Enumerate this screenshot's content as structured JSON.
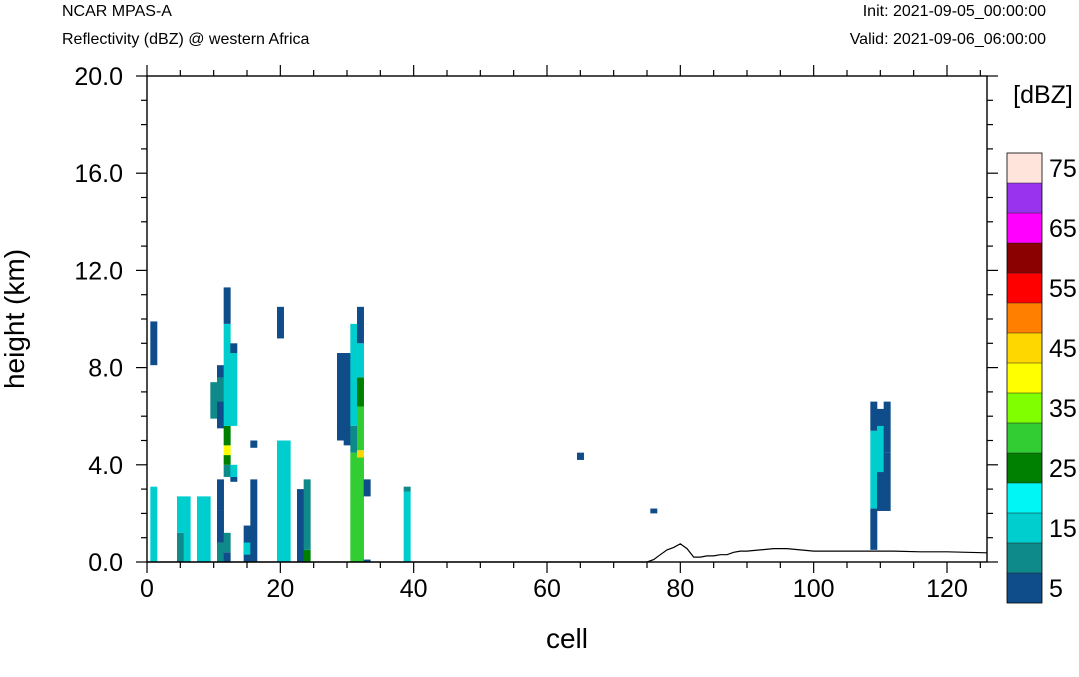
{
  "header": {
    "left_title": "NCAR MPAS-A",
    "left_subtitle": "Reflectivity (dBZ) @ western Africa",
    "right_title": "Init: 2021-09-05_00:00:00",
    "right_subtitle": "Valid: 2021-09-06_06:00:00"
  },
  "chart_data": {
    "type": "heatmap",
    "xlabel": "cell",
    "ylabel": "height (km)",
    "xlim": [
      0,
      126
    ],
    "ylim": [
      0,
      20
    ],
    "x_ticks": [
      0,
      20,
      40,
      60,
      80,
      100,
      120
    ],
    "y_ticks": [
      0,
      4,
      8,
      12,
      16,
      20
    ],
    "x_tick_labels": [
      "0",
      "20",
      "40",
      "60",
      "80",
      "100",
      "120"
    ],
    "y_tick_labels": [
      "0.0",
      "4.0",
      "8.0",
      "12.0",
      "16.0",
      "20.0"
    ],
    "grid": false,
    "legend": {
      "title": "[dBZ]",
      "placement": "right",
      "levels": [
        5,
        10,
        15,
        20,
        25,
        30,
        35,
        40,
        45,
        50,
        55,
        60,
        65,
        70,
        75
      ],
      "labels": [
        "5",
        "15",
        "25",
        "35",
        "45",
        "55",
        "65",
        "75"
      ],
      "colors": [
        "#0f4c8a",
        "#0e8a8a",
        "#00cdcd",
        "#00f5f5",
        "#008000",
        "#32cd32",
        "#7fff00",
        "#ffff00",
        "#ffd700",
        "#ff7f00",
        "#ff0000",
        "#8b0000",
        "#ff00ff",
        "#9933ee",
        "#ffe4dc"
      ]
    },
    "cell_height_km": 0.35,
    "reflectivity_columns": [
      {
        "x": 1,
        "cells": [
          [
            0,
            0.35,
            15
          ],
          [
            0.35,
            3.1,
            15
          ],
          [
            8.1,
            9.9,
            5
          ]
        ]
      },
      {
        "x": 5,
        "cells": [
          [
            0,
            1.2,
            10
          ],
          [
            1.2,
            2.7,
            15
          ]
        ]
      },
      {
        "x": 6,
        "cells": [
          [
            0,
            2.7,
            15
          ]
        ]
      },
      {
        "x": 8,
        "cells": [
          [
            0,
            2.7,
            15
          ]
        ]
      },
      {
        "x": 9,
        "cells": [
          [
            0,
            2.7,
            15
          ]
        ]
      },
      {
        "x": 10,
        "cells": [
          [
            5.9,
            7.4,
            10
          ]
        ]
      },
      {
        "x": 11,
        "cells": [
          [
            0,
            0.8,
            10
          ],
          [
            0.8,
            2.1,
            5
          ],
          [
            2.1,
            3.4,
            5
          ],
          [
            5.5,
            8.1,
            5
          ],
          [
            6.6,
            7.6,
            10
          ]
        ]
      },
      {
        "x": 12,
        "cells": [
          [
            0,
            0.4,
            5
          ],
          [
            0.4,
            1.2,
            10
          ],
          [
            3.5,
            4.0,
            10
          ],
          [
            4.0,
            4.4,
            25
          ],
          [
            4.4,
            4.8,
            40
          ],
          [
            4.8,
            5.6,
            25
          ],
          [
            5.6,
            9.8,
            15
          ],
          [
            9.8,
            11.3,
            5
          ]
        ]
      },
      {
        "x": 13,
        "cells": [
          [
            3.3,
            3.5,
            5
          ],
          [
            3.5,
            4.0,
            15
          ],
          [
            5.6,
            8.6,
            15
          ],
          [
            8.6,
            9.0,
            5
          ]
        ]
      },
      {
        "x": 15,
        "cells": [
          [
            0,
            1.5,
            5
          ],
          [
            0.3,
            0.8,
            15
          ]
        ]
      },
      {
        "x": 16,
        "cells": [
          [
            0,
            3.4,
            5
          ],
          [
            4.7,
            5.0,
            5
          ]
        ]
      },
      {
        "x": 20,
        "cells": [
          [
            0,
            5.0,
            15
          ],
          [
            9.2,
            10.5,
            5
          ]
        ]
      },
      {
        "x": 21,
        "cells": [
          [
            0,
            5.0,
            15
          ]
        ]
      },
      {
        "x": 23,
        "cells": [
          [
            0,
            3.0,
            5
          ]
        ]
      },
      {
        "x": 24,
        "cells": [
          [
            0,
            0.5,
            25
          ],
          [
            0.5,
            3.4,
            10
          ]
        ]
      },
      {
        "x": 29,
        "cells": [
          [
            5.0,
            8.6,
            5
          ]
        ]
      },
      {
        "x": 30,
        "cells": [
          [
            4.8,
            8.6,
            5
          ]
        ]
      },
      {
        "x": 31,
        "cells": [
          [
            0,
            4.5,
            30
          ],
          [
            4.5,
            5.6,
            10
          ],
          [
            5.6,
            9.8,
            15
          ]
        ]
      },
      {
        "x": 32,
        "cells": [
          [
            0,
            4.3,
            30
          ],
          [
            4.3,
            4.6,
            45
          ],
          [
            4.6,
            6.4,
            30
          ],
          [
            6.4,
            7.6,
            25
          ],
          [
            7.6,
            9.0,
            15
          ],
          [
            9.0,
            10.5,
            5
          ]
        ]
      },
      {
        "x": 33,
        "cells": [
          [
            0,
            0.1,
            5
          ],
          [
            2.7,
            3.4,
            5
          ]
        ]
      },
      {
        "x": 39,
        "cells": [
          [
            0,
            2.9,
            15
          ],
          [
            2.9,
            3.1,
            10
          ]
        ]
      },
      {
        "x": 65,
        "cells": [
          [
            4.2,
            4.5,
            5
          ]
        ]
      },
      {
        "x": 76,
        "cells": [
          [
            2.0,
            2.2,
            5
          ]
        ]
      },
      {
        "x": 109,
        "cells": [
          [
            0.5,
            2.2,
            5
          ],
          [
            2.2,
            5.4,
            15
          ],
          [
            5.4,
            6.6,
            5
          ]
        ]
      },
      {
        "x": 110,
        "cells": [
          [
            2.1,
            6.3,
            5
          ],
          [
            3.7,
            5.6,
            15
          ]
        ]
      },
      {
        "x": 111,
        "cells": [
          [
            2.1,
            4.5,
            5
          ],
          [
            4.5,
            6.6,
            5
          ]
        ]
      }
    ],
    "terrain": {
      "x": [
        0,
        75,
        76,
        77,
        78,
        79,
        80,
        81,
        82,
        83,
        84,
        85,
        86,
        87,
        88,
        89,
        90,
        92,
        94,
        96,
        98,
        100,
        104,
        108,
        112,
        116,
        120,
        126
      ],
      "height_km": [
        0,
        0,
        0.1,
        0.3,
        0.5,
        0.6,
        0.75,
        0.55,
        0.2,
        0.2,
        0.25,
        0.25,
        0.3,
        0.3,
        0.4,
        0.45,
        0.45,
        0.5,
        0.55,
        0.55,
        0.5,
        0.45,
        0.45,
        0.45,
        0.45,
        0.42,
        0.42,
        0.38
      ]
    }
  }
}
